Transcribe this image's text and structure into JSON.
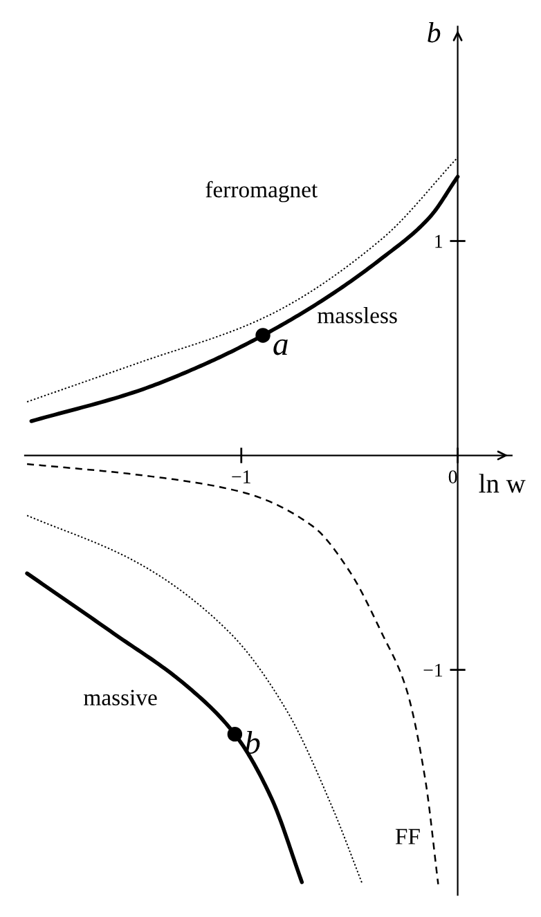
{
  "chart_data": {
    "type": "line",
    "xlabel": "ln w",
    "ylabel": "b",
    "xlim": [
      -2.0,
      0.25
    ],
    "ylim": [
      -2.05,
      2.0
    ],
    "xticks": [
      -1,
      0
    ],
    "yticks": [
      -1,
      1
    ],
    "grid": false,
    "annotations": [
      "ferromagnet",
      "massless",
      "massive",
      "FF"
    ],
    "series": [
      {
        "color": "#000000",
        "line_style": "solid",
        "x": [
          -1.97,
          -1.48,
          -1.16,
          -0.9,
          -0.63,
          -0.35,
          -0.13,
          0.0
        ],
        "values": [
          0.16,
          0.3,
          0.43,
          0.56,
          0.72,
          0.92,
          1.11,
          1.3
        ]
      },
      {
        "color": "#000000",
        "line_style": "dotted",
        "x": [
          -1.99,
          -1.48,
          -0.9,
          -0.35,
          0.0
        ],
        "values": [
          0.25,
          0.43,
          0.64,
          1.01,
          1.39
        ]
      },
      {
        "color": "#000000",
        "line_style": "dashed",
        "x": [
          -1.99,
          -1.48,
          -1.0,
          -0.67,
          -0.5,
          -0.35,
          -0.24,
          -0.15,
          -0.09
        ],
        "values": [
          -0.04,
          -0.09,
          -0.17,
          -0.33,
          -0.54,
          -0.83,
          -1.08,
          -1.51,
          -2.0
        ]
      },
      {
        "color": "#000000",
        "line_style": "dotted",
        "x": [
          -1.99,
          -1.48,
          -1.05,
          -0.79,
          -0.58,
          -0.44
        ],
        "values": [
          -0.28,
          -0.5,
          -0.83,
          -1.19,
          -1.64,
          -2.0
        ]
      },
      {
        "color": "#000000",
        "line_style": "solid",
        "x": [
          -1.99,
          -1.59,
          -1.27,
          -1.03,
          -0.86,
          -0.72
        ],
        "values": [
          -0.55,
          -0.83,
          -1.06,
          -1.3,
          -1.6,
          -1.99
        ]
      },
      {
        "type": "scatter",
        "color": "#000000",
        "marker": "circle",
        "x": [
          -0.9
        ],
        "values": [
          0.56
        ],
        "value_labels": [
          "a"
        ]
      },
      {
        "type": "scatter",
        "color": "#000000",
        "marker": "circle",
        "x": [
          -1.03
        ],
        "values": [
          -1.3
        ],
        "value_labels": [
          "b"
        ]
      }
    ]
  }
}
